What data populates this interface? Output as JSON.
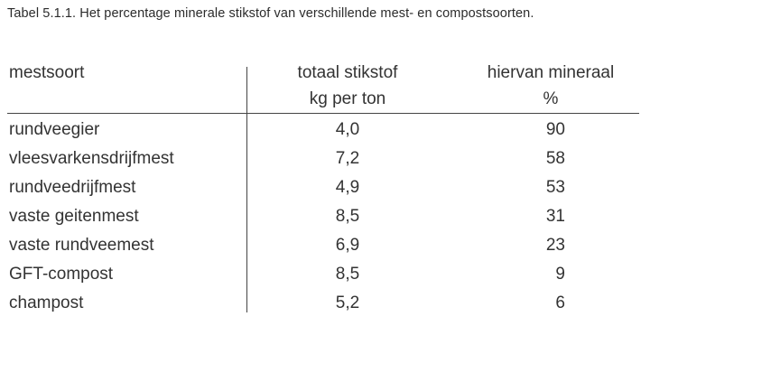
{
  "caption": "Tabel 5.1.1. Het percentage minerale stikstof van verschillende mest- en compostsoorten.",
  "headers": {
    "col1": "mestsoort",
    "col2_line1": "totaal stikstof",
    "col2_line2": "kg per ton",
    "col3_line1": "hiervan mineraal",
    "col3_line2": "%"
  },
  "rows": [
    {
      "name": "rundveegier",
      "total": "4,0",
      "mineral": "90"
    },
    {
      "name": "vleesvarkensdrijfmest",
      "total": "7,2",
      "mineral": "58"
    },
    {
      "name": "rundveedrijfmest",
      "total": "4,9",
      "mineral": "53"
    },
    {
      "name": "vaste geitenmest",
      "total": "8,5",
      "mineral": "31"
    },
    {
      "name": "vaste rundveemest",
      "total": "6,9",
      "mineral": "23"
    },
    {
      "name": "GFT-compost",
      "total": "8,5",
      "mineral": "9"
    },
    {
      "name": "champost",
      "total": "5,2",
      "mineral": "6"
    }
  ]
}
